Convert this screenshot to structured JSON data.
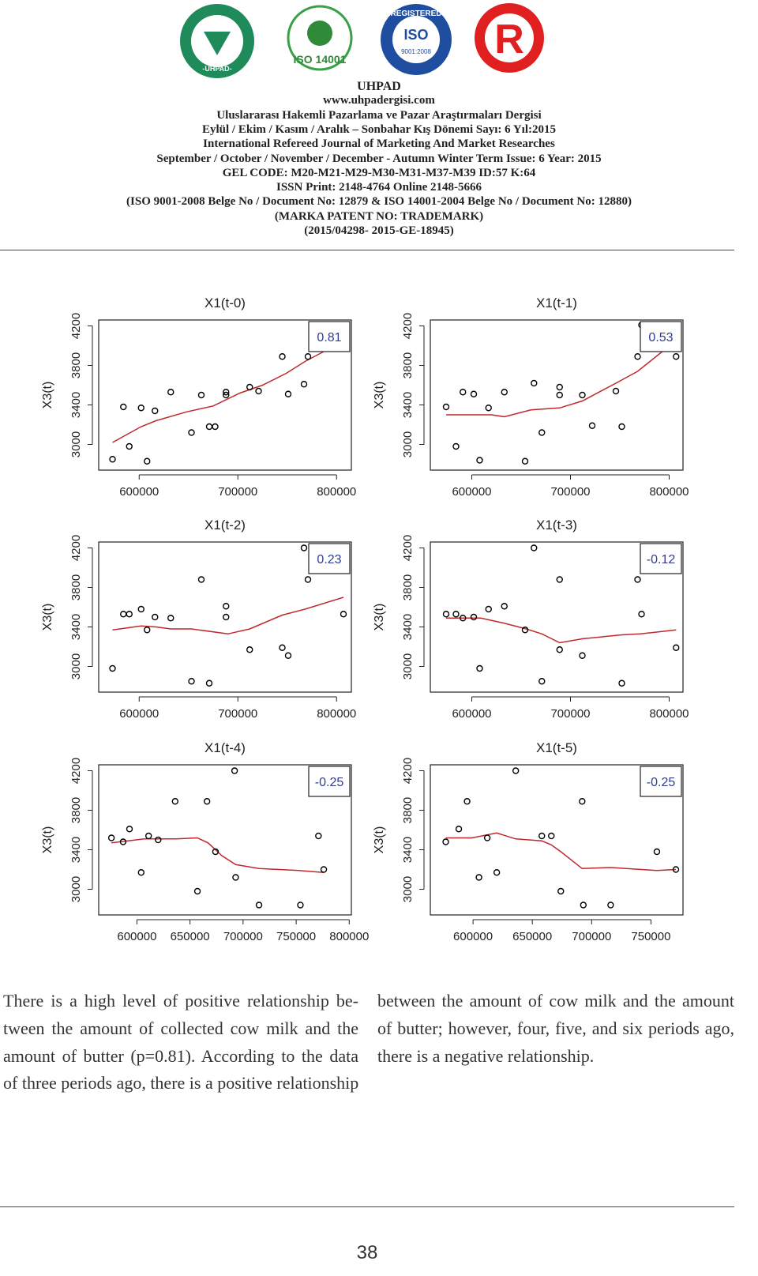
{
  "header": {
    "logos": [
      "-UHPAD-",
      "ISO 14001",
      "REGISTERED",
      "ISO",
      "9001:2008",
      "R"
    ],
    "lines": [
      "UHPAD",
      "www.uhpadergisi.com",
      "Uluslararası Hakemli Pazarlama ve Pazar Araştırmaları Dergisi",
      "Eylül / Ekim / Kasım / Aralık – Sonbahar Kış Dönemi Sayı: 6 Yıl:2015",
      "International Refereed Journal of Marketing And Market Researches",
      "September / October / November / December - Autumn Winter Term Issue: 6 Year: 2015",
      "GEL CODE: M20-M21-M29-M30-M31-M37-M39 ID:57 K:64",
      "ISSN Print: 2148-4764 Online 2148-5666",
      "(ISO 9001-2008 Belge No / Document No: 12879 & ISO 14001-2004 Belge No / Document No: 12880)",
      "(MARKA PATENT NO: TRADEMARK)",
      "(2015/04298- 2015-GE-18945)"
    ]
  },
  "chart_data": [
    {
      "type": "scatter",
      "title": "X1(t-0)",
      "y_label": "X3(t)",
      "annotation": "0.81",
      "color": "#000000",
      "line_color": "#c0282d",
      "x": [
        573000,
        584000,
        590000,
        602000,
        608000,
        616000,
        632000,
        653000,
        663000,
        671000,
        677000,
        688000,
        688000,
        712000,
        721000,
        745000,
        751000,
        767000,
        771000
      ],
      "y": [
        2850,
        3380,
        2980,
        3370,
        2830,
        3340,
        3530,
        3120,
        3500,
        3180,
        3180,
        3530,
        3500,
        3580,
        3540,
        3890,
        3510,
        3610,
        3890
      ],
      "fit_x": [
        573000,
        602000,
        617000,
        648000,
        675000,
        702000,
        725000,
        749000,
        768000,
        787000
      ],
      "fit_y": [
        3020,
        3180,
        3240,
        3330,
        3390,
        3520,
        3600,
        3720,
        3840,
        3940
      ],
      "xlim": [
        559000,
        815000
      ],
      "ylim": [
        2740,
        4260
      ],
      "xticks": [
        600000,
        700000,
        800000
      ],
      "yticks": [
        3000,
        3400,
        3800,
        4200
      ]
    },
    {
      "type": "scatter",
      "title": "X1(t-1)",
      "y_label": "X3(t)",
      "annotation": "0.53",
      "color": "#000000",
      "line_color": "#c0282d",
      "x": [
        574000,
        584000,
        591000,
        602000,
        608000,
        617000,
        633000,
        654000,
        663000,
        671000,
        689000,
        689000,
        712000,
        722000,
        746000,
        752000,
        768000,
        772000,
        807000
      ],
      "y": [
        3380,
        2980,
        3530,
        3510,
        2840,
        3370,
        3530,
        2830,
        3620,
        3120,
        3580,
        3500,
        3500,
        3190,
        3540,
        3180,
        3890,
        4210,
        3890
      ],
      "fit_x": [
        574000,
        620000,
        633000,
        660000,
        689000,
        712000,
        746000,
        768000,
        798000
      ],
      "fit_y": [
        3300,
        3300,
        3280,
        3350,
        3370,
        3440,
        3620,
        3740,
        3980
      ],
      "xlim": [
        558000,
        814000
      ],
      "ylim": [
        2740,
        4260
      ],
      "xticks": [
        600000,
        700000,
        800000
      ],
      "yticks": [
        3000,
        3400,
        3800,
        4200
      ]
    },
    {
      "type": "scatter",
      "title": "X1(t-2)",
      "y_label": "X3(t)",
      "annotation": "0.23",
      "color": "#000000",
      "line_color": "#c0282d",
      "x": [
        573000,
        584000,
        590000,
        602000,
        608000,
        616000,
        632000,
        653000,
        663000,
        671000,
        688000,
        688000,
        712000,
        745000,
        751000,
        767000,
        771000,
        807000
      ],
      "y": [
        2980,
        3530,
        3530,
        3580,
        3370,
        3500,
        3490,
        2850,
        3880,
        2830,
        3610,
        3500,
        3170,
        3190,
        3110,
        4200,
        3880,
        3530
      ],
      "fit_x": [
        573000,
        602000,
        617000,
        632000,
        653000,
        690000,
        712000,
        745000,
        768000,
        807000
      ],
      "fit_y": [
        3370,
        3410,
        3400,
        3380,
        3380,
        3330,
        3380,
        3520,
        3580,
        3700
      ],
      "xlim": [
        559000,
        815000
      ],
      "ylim": [
        2740,
        4260
      ],
      "xticks": [
        600000,
        700000,
        800000
      ],
      "yticks": [
        3000,
        3400,
        3800,
        4200
      ]
    },
    {
      "type": "scatter",
      "title": "X1(t-3)",
      "y_label": "X3(t)",
      "annotation": "-0.12",
      "color": "#000000",
      "line_color": "#c0282d",
      "x": [
        574000,
        584000,
        591000,
        602000,
        608000,
        617000,
        633000,
        654000,
        663000,
        671000,
        689000,
        689000,
        712000,
        752000,
        768000,
        772000,
        807000
      ],
      "y": [
        3530,
        3530,
        3490,
        3500,
        2980,
        3580,
        3610,
        3370,
        4200,
        2850,
        3880,
        3170,
        3110,
        2830,
        3880,
        3530,
        3190
      ],
      "fit_x": [
        574000,
        609000,
        632000,
        655000,
        671000,
        689000,
        712000,
        752000,
        771000,
        807000
      ],
      "fit_y": [
        3490,
        3490,
        3440,
        3380,
        3330,
        3240,
        3280,
        3320,
        3330,
        3370
      ],
      "xlim": [
        558000,
        814000
      ],
      "ylim": [
        2740,
        4260
      ],
      "xticks": [
        600000,
        700000,
        800000
      ],
      "yticks": [
        3000,
        3400,
        3800,
        4200
      ]
    },
    {
      "type": "scatter",
      "title": "X1(t-4)",
      "y_label": "X3(t)",
      "annotation": "-0.25",
      "color": "#000000",
      "line_color": "#c0282d",
      "x": [
        576000,
        587000,
        593000,
        604000,
        611000,
        620000,
        636000,
        657000,
        666000,
        674000,
        692000,
        693000,
        715000,
        754000,
        771000,
        776000
      ],
      "y": [
        3520,
        3480,
        3610,
        3170,
        3540,
        3500,
        3890,
        2980,
        3890,
        3380,
        4200,
        3120,
        2840,
        2840,
        3540,
        3200
      ],
      "fit_x": [
        576000,
        607000,
        637000,
        657000,
        667000,
        680000,
        693000,
        715000,
        753000,
        776000
      ],
      "fit_y": [
        3470,
        3510,
        3510,
        3520,
        3470,
        3340,
        3250,
        3210,
        3190,
        3170
      ],
      "xlim": [
        564000,
        802000
      ],
      "ylim": [
        2740,
        4260
      ],
      "xticks": [
        600000,
        650000,
        700000,
        750000,
        800000
      ],
      "yticks": [
        3000,
        3400,
        3800,
        4200
      ]
    },
    {
      "type": "scatter",
      "title": "X1(t-5)",
      "y_label": "X3(t)",
      "annotation": "-0.25",
      "color": "#000000",
      "line_color": "#c0282d",
      "x": [
        577000,
        588000,
        595000,
        605000,
        612000,
        620000,
        636000,
        658000,
        666000,
        674000,
        692000,
        693000,
        716000,
        755000,
        771000
      ],
      "y": [
        3480,
        3610,
        3890,
        3120,
        3520,
        3170,
        4200,
        3540,
        3540,
        2980,
        3890,
        2840,
        2840,
        3380,
        3200
      ],
      "fit_x": [
        577000,
        599000,
        620000,
        636000,
        658000,
        666000,
        674000,
        692000,
        716000,
        755000,
        771000
      ],
      "fit_y": [
        3520,
        3520,
        3570,
        3510,
        3490,
        3450,
        3380,
        3210,
        3220,
        3190,
        3200
      ],
      "xlim": [
        564000,
        777000
      ],
      "ylim": [
        2740,
        4260
      ],
      "xticks": [
        600000,
        650000,
        700000,
        750000
      ],
      "yticks": [
        3000,
        3400,
        3800,
        4200
      ]
    }
  ],
  "body": {
    "columns": [
      [
        "There is a high level of positive relationship be-",
        "tween the amount of collected cow milk and the",
        "amount of butter (p=0.81). According to the data",
        "of three periods ago, there is a positive relationship"
      ],
      [
        "between the amount of cow milk and the amount",
        "of butter; however, four, five, and six periods ago,",
        "there is a negative relationship."
      ]
    ]
  },
  "page_number": "38"
}
